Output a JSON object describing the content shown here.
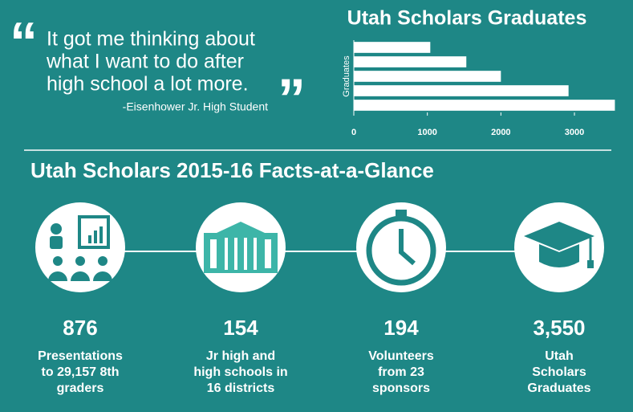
{
  "quote": {
    "lines": [
      "It got me thinking about",
      "what I want to do after",
      "high school a lot more."
    ],
    "attribution": "-Eisenhower Jr. High Student"
  },
  "chart_data": {
    "type": "bar",
    "orientation": "horizontal",
    "title": "Utah Scholars Graduates",
    "y_label": "Graduates",
    "categories": [
      null,
      null,
      null,
      null,
      null
    ],
    "values": [
      1040,
      1530,
      2000,
      2920,
      3550
    ],
    "color": "#ffffff",
    "xlim": [
      0,
      3600
    ],
    "xticks": [
      0,
      1000,
      2000,
      3000
    ]
  },
  "facts": {
    "title": "Utah Scholars 2015-16 Facts-at-a-Glance",
    "items": [
      {
        "number": "876",
        "label": [
          "Presentations",
          "to 29,157 8th",
          "graders"
        ]
      },
      {
        "number": "154",
        "label": [
          "Jr high and",
          "high schools in",
          "16 districts"
        ]
      },
      {
        "number": "194",
        "label": [
          "Volunteers",
          "from 23",
          "sponsors"
        ]
      },
      {
        "number": "3,550",
        "label": [
          "Utah",
          "Scholars",
          "Graduates"
        ]
      }
    ]
  }
}
